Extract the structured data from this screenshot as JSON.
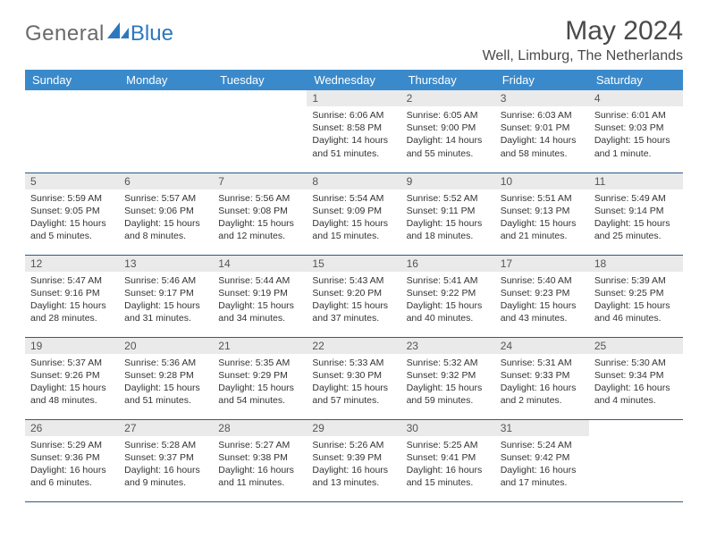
{
  "brand": {
    "name1": "General",
    "name2": "Blue"
  },
  "title": "May 2024",
  "location": "Well, Limburg, The Netherlands",
  "colors": {
    "header_bg": "#3a8acb",
    "header_text": "#ffffff",
    "daynum_bg": "#eaeaea",
    "border": "#2f5b85",
    "brand_gray": "#6a6a6a",
    "brand_blue": "#2d78bd"
  },
  "daynames": [
    "Sunday",
    "Monday",
    "Tuesday",
    "Wednesday",
    "Thursday",
    "Friday",
    "Saturday"
  ],
  "weeks": [
    [
      null,
      null,
      null,
      {
        "d": "1",
        "sr": "Sunrise: 6:06 AM",
        "ss": "Sunset: 8:58 PM",
        "dl": "Daylight: 14 hours and 51 minutes."
      },
      {
        "d": "2",
        "sr": "Sunrise: 6:05 AM",
        "ss": "Sunset: 9:00 PM",
        "dl": "Daylight: 14 hours and 55 minutes."
      },
      {
        "d": "3",
        "sr": "Sunrise: 6:03 AM",
        "ss": "Sunset: 9:01 PM",
        "dl": "Daylight: 14 hours and 58 minutes."
      },
      {
        "d": "4",
        "sr": "Sunrise: 6:01 AM",
        "ss": "Sunset: 9:03 PM",
        "dl": "Daylight: 15 hours and 1 minute."
      }
    ],
    [
      {
        "d": "5",
        "sr": "Sunrise: 5:59 AM",
        "ss": "Sunset: 9:05 PM",
        "dl": "Daylight: 15 hours and 5 minutes."
      },
      {
        "d": "6",
        "sr": "Sunrise: 5:57 AM",
        "ss": "Sunset: 9:06 PM",
        "dl": "Daylight: 15 hours and 8 minutes."
      },
      {
        "d": "7",
        "sr": "Sunrise: 5:56 AM",
        "ss": "Sunset: 9:08 PM",
        "dl": "Daylight: 15 hours and 12 minutes."
      },
      {
        "d": "8",
        "sr": "Sunrise: 5:54 AM",
        "ss": "Sunset: 9:09 PM",
        "dl": "Daylight: 15 hours and 15 minutes."
      },
      {
        "d": "9",
        "sr": "Sunrise: 5:52 AM",
        "ss": "Sunset: 9:11 PM",
        "dl": "Daylight: 15 hours and 18 minutes."
      },
      {
        "d": "10",
        "sr": "Sunrise: 5:51 AM",
        "ss": "Sunset: 9:13 PM",
        "dl": "Daylight: 15 hours and 21 minutes."
      },
      {
        "d": "11",
        "sr": "Sunrise: 5:49 AM",
        "ss": "Sunset: 9:14 PM",
        "dl": "Daylight: 15 hours and 25 minutes."
      }
    ],
    [
      {
        "d": "12",
        "sr": "Sunrise: 5:47 AM",
        "ss": "Sunset: 9:16 PM",
        "dl": "Daylight: 15 hours and 28 minutes."
      },
      {
        "d": "13",
        "sr": "Sunrise: 5:46 AM",
        "ss": "Sunset: 9:17 PM",
        "dl": "Daylight: 15 hours and 31 minutes."
      },
      {
        "d": "14",
        "sr": "Sunrise: 5:44 AM",
        "ss": "Sunset: 9:19 PM",
        "dl": "Daylight: 15 hours and 34 minutes."
      },
      {
        "d": "15",
        "sr": "Sunrise: 5:43 AM",
        "ss": "Sunset: 9:20 PM",
        "dl": "Daylight: 15 hours and 37 minutes."
      },
      {
        "d": "16",
        "sr": "Sunrise: 5:41 AM",
        "ss": "Sunset: 9:22 PM",
        "dl": "Daylight: 15 hours and 40 minutes."
      },
      {
        "d": "17",
        "sr": "Sunrise: 5:40 AM",
        "ss": "Sunset: 9:23 PM",
        "dl": "Daylight: 15 hours and 43 minutes."
      },
      {
        "d": "18",
        "sr": "Sunrise: 5:39 AM",
        "ss": "Sunset: 9:25 PM",
        "dl": "Daylight: 15 hours and 46 minutes."
      }
    ],
    [
      {
        "d": "19",
        "sr": "Sunrise: 5:37 AM",
        "ss": "Sunset: 9:26 PM",
        "dl": "Daylight: 15 hours and 48 minutes."
      },
      {
        "d": "20",
        "sr": "Sunrise: 5:36 AM",
        "ss": "Sunset: 9:28 PM",
        "dl": "Daylight: 15 hours and 51 minutes."
      },
      {
        "d": "21",
        "sr": "Sunrise: 5:35 AM",
        "ss": "Sunset: 9:29 PM",
        "dl": "Daylight: 15 hours and 54 minutes."
      },
      {
        "d": "22",
        "sr": "Sunrise: 5:33 AM",
        "ss": "Sunset: 9:30 PM",
        "dl": "Daylight: 15 hours and 57 minutes."
      },
      {
        "d": "23",
        "sr": "Sunrise: 5:32 AM",
        "ss": "Sunset: 9:32 PM",
        "dl": "Daylight: 15 hours and 59 minutes."
      },
      {
        "d": "24",
        "sr": "Sunrise: 5:31 AM",
        "ss": "Sunset: 9:33 PM",
        "dl": "Daylight: 16 hours and 2 minutes."
      },
      {
        "d": "25",
        "sr": "Sunrise: 5:30 AM",
        "ss": "Sunset: 9:34 PM",
        "dl": "Daylight: 16 hours and 4 minutes."
      }
    ],
    [
      {
        "d": "26",
        "sr": "Sunrise: 5:29 AM",
        "ss": "Sunset: 9:36 PM",
        "dl": "Daylight: 16 hours and 6 minutes."
      },
      {
        "d": "27",
        "sr": "Sunrise: 5:28 AM",
        "ss": "Sunset: 9:37 PM",
        "dl": "Daylight: 16 hours and 9 minutes."
      },
      {
        "d": "28",
        "sr": "Sunrise: 5:27 AM",
        "ss": "Sunset: 9:38 PM",
        "dl": "Daylight: 16 hours and 11 minutes."
      },
      {
        "d": "29",
        "sr": "Sunrise: 5:26 AM",
        "ss": "Sunset: 9:39 PM",
        "dl": "Daylight: 16 hours and 13 minutes."
      },
      {
        "d": "30",
        "sr": "Sunrise: 5:25 AM",
        "ss": "Sunset: 9:41 PM",
        "dl": "Daylight: 16 hours and 15 minutes."
      },
      {
        "d": "31",
        "sr": "Sunrise: 5:24 AM",
        "ss": "Sunset: 9:42 PM",
        "dl": "Daylight: 16 hours and 17 minutes."
      },
      null
    ]
  ]
}
